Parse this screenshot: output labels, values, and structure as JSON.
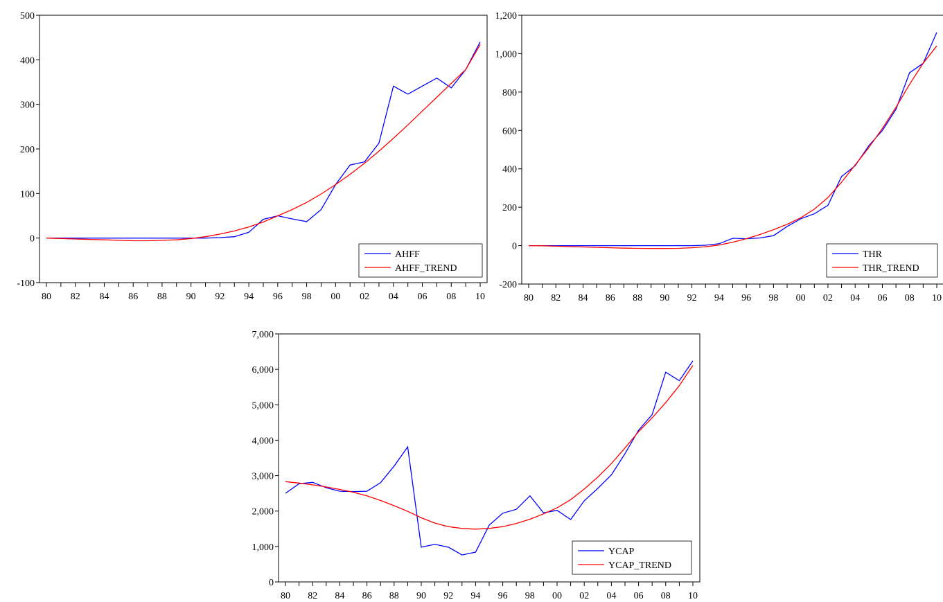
{
  "chart_data": [
    {
      "type": "line",
      "x_ticks": [
        "80",
        "82",
        "84",
        "86",
        "88",
        "90",
        "92",
        "94",
        "96",
        "98",
        "00",
        "02",
        "04",
        "06",
        "08",
        "10"
      ],
      "ylim": [
        -100,
        500
      ],
      "y_ticks": [
        -100,
        0,
        100,
        200,
        300,
        400,
        500
      ],
      "y_tick_labels": [
        "-100",
        "0",
        "100",
        "200",
        "300",
        "400",
        "500"
      ],
      "legend_position": "bottom-right",
      "grid": false,
      "series": [
        {
          "name": "AHFF",
          "color": "#0000FF",
          "values": [
            0,
            0,
            0,
            0,
            0,
            0,
            0,
            0,
            0,
            0,
            0,
            0,
            1,
            3,
            13,
            42,
            50,
            43,
            37,
            64,
            120,
            164,
            171,
            213,
            341,
            323,
            341,
            359,
            337,
            378,
            440
          ]
        },
        {
          "name": "AHFF_TREND",
          "color": "#FF0000",
          "values": [
            0,
            -1,
            -2,
            -3,
            -4,
            -5,
            -6,
            -6,
            -5,
            -4,
            -1,
            3,
            9,
            16,
            25,
            36,
            50,
            64,
            80,
            99,
            120,
            143,
            168,
            195,
            224,
            254,
            285,
            316,
            347,
            378,
            434
          ]
        }
      ]
    },
    {
      "type": "line",
      "x_ticks": [
        "80",
        "82",
        "84",
        "86",
        "88",
        "90",
        "92",
        "94",
        "96",
        "98",
        "00",
        "02",
        "04",
        "06",
        "08",
        "10"
      ],
      "ylim": [
        -200,
        1200
      ],
      "y_ticks": [
        -200,
        0,
        200,
        400,
        600,
        800,
        1000,
        1200
      ],
      "y_tick_labels": [
        "-200",
        "0",
        "200",
        "400",
        "600",
        "800",
        "1,000",
        "1,200"
      ],
      "legend_position": "bottom-right",
      "grid": false,
      "series": [
        {
          "name": "THR",
          "color": "#0000FF",
          "values": [
            0,
            0,
            0,
            0,
            0,
            0,
            0,
            0,
            0,
            0,
            0,
            0,
            0,
            2,
            10,
            38,
            36,
            40,
            52,
            100,
            140,
            166,
            210,
            360,
            416,
            520,
            600,
            710,
            900,
            950,
            1110
          ]
        },
        {
          "name": "THR_TREND",
          "color": "#FF0000",
          "values": [
            0,
            -1,
            -3,
            -5,
            -7,
            -9,
            -11,
            -13,
            -14,
            -15,
            -15,
            -14,
            -11,
            -6,
            3,
            18,
            36,
            58,
            83,
            111,
            145,
            190,
            250,
            330,
            420,
            510,
            610,
            720,
            840,
            950,
            1040
          ]
        }
      ]
    },
    {
      "type": "line",
      "x_ticks": [
        "80",
        "82",
        "84",
        "86",
        "88",
        "90",
        "92",
        "94",
        "96",
        "98",
        "00",
        "02",
        "04",
        "06",
        "08",
        "10"
      ],
      "ylim": [
        0,
        7000
      ],
      "y_ticks": [
        0,
        1000,
        2000,
        3000,
        4000,
        5000,
        6000,
        7000
      ],
      "y_tick_labels": [
        "0",
        "1,000",
        "2,000",
        "3,000",
        "4,000",
        "5,000",
        "6,000",
        "7,000"
      ],
      "legend_position": "bottom-right",
      "grid": false,
      "series": [
        {
          "name": "YCAP",
          "color": "#0000FF",
          "values": [
            2500,
            2770,
            2810,
            2660,
            2560,
            2550,
            2560,
            2800,
            3270,
            3810,
            980,
            1060,
            980,
            760,
            840,
            1600,
            1940,
            2050,
            2430,
            1950,
            2020,
            1760,
            2290,
            2640,
            3020,
            3620,
            4280,
            4720,
            5920,
            5680,
            6240
          ]
        },
        {
          "name": "YCAP_TREND",
          "color": "#FF0000",
          "values": [
            2830,
            2790,
            2740,
            2680,
            2610,
            2530,
            2430,
            2300,
            2150,
            1990,
            1810,
            1660,
            1560,
            1510,
            1490,
            1510,
            1560,
            1650,
            1770,
            1920,
            2090,
            2320,
            2620,
            2960,
            3340,
            3780,
            4240,
            4630,
            5060,
            5540,
            6110
          ]
        }
      ]
    }
  ]
}
